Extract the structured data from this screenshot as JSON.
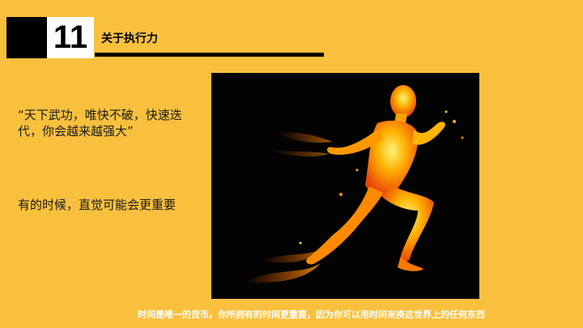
{
  "header": {
    "number": "11",
    "title": "关于执行力"
  },
  "body": {
    "quote": "“天下武功，唯快不破，快速迭代，你会越来越强大”",
    "note": "有的时候，直觉可能会更重要"
  },
  "image": {
    "icon": "flaming-runner-illustration"
  },
  "footer": {
    "caption": "时间是唯一的货币。你所拥有的时间更重要，因为你可以用时间来换这世界上的任何东西"
  },
  "colors": {
    "background": "#f9c03e",
    "accent_black": "#000000",
    "fire_orange": "#ff8a00",
    "fire_yellow": "#ffd21a"
  }
}
